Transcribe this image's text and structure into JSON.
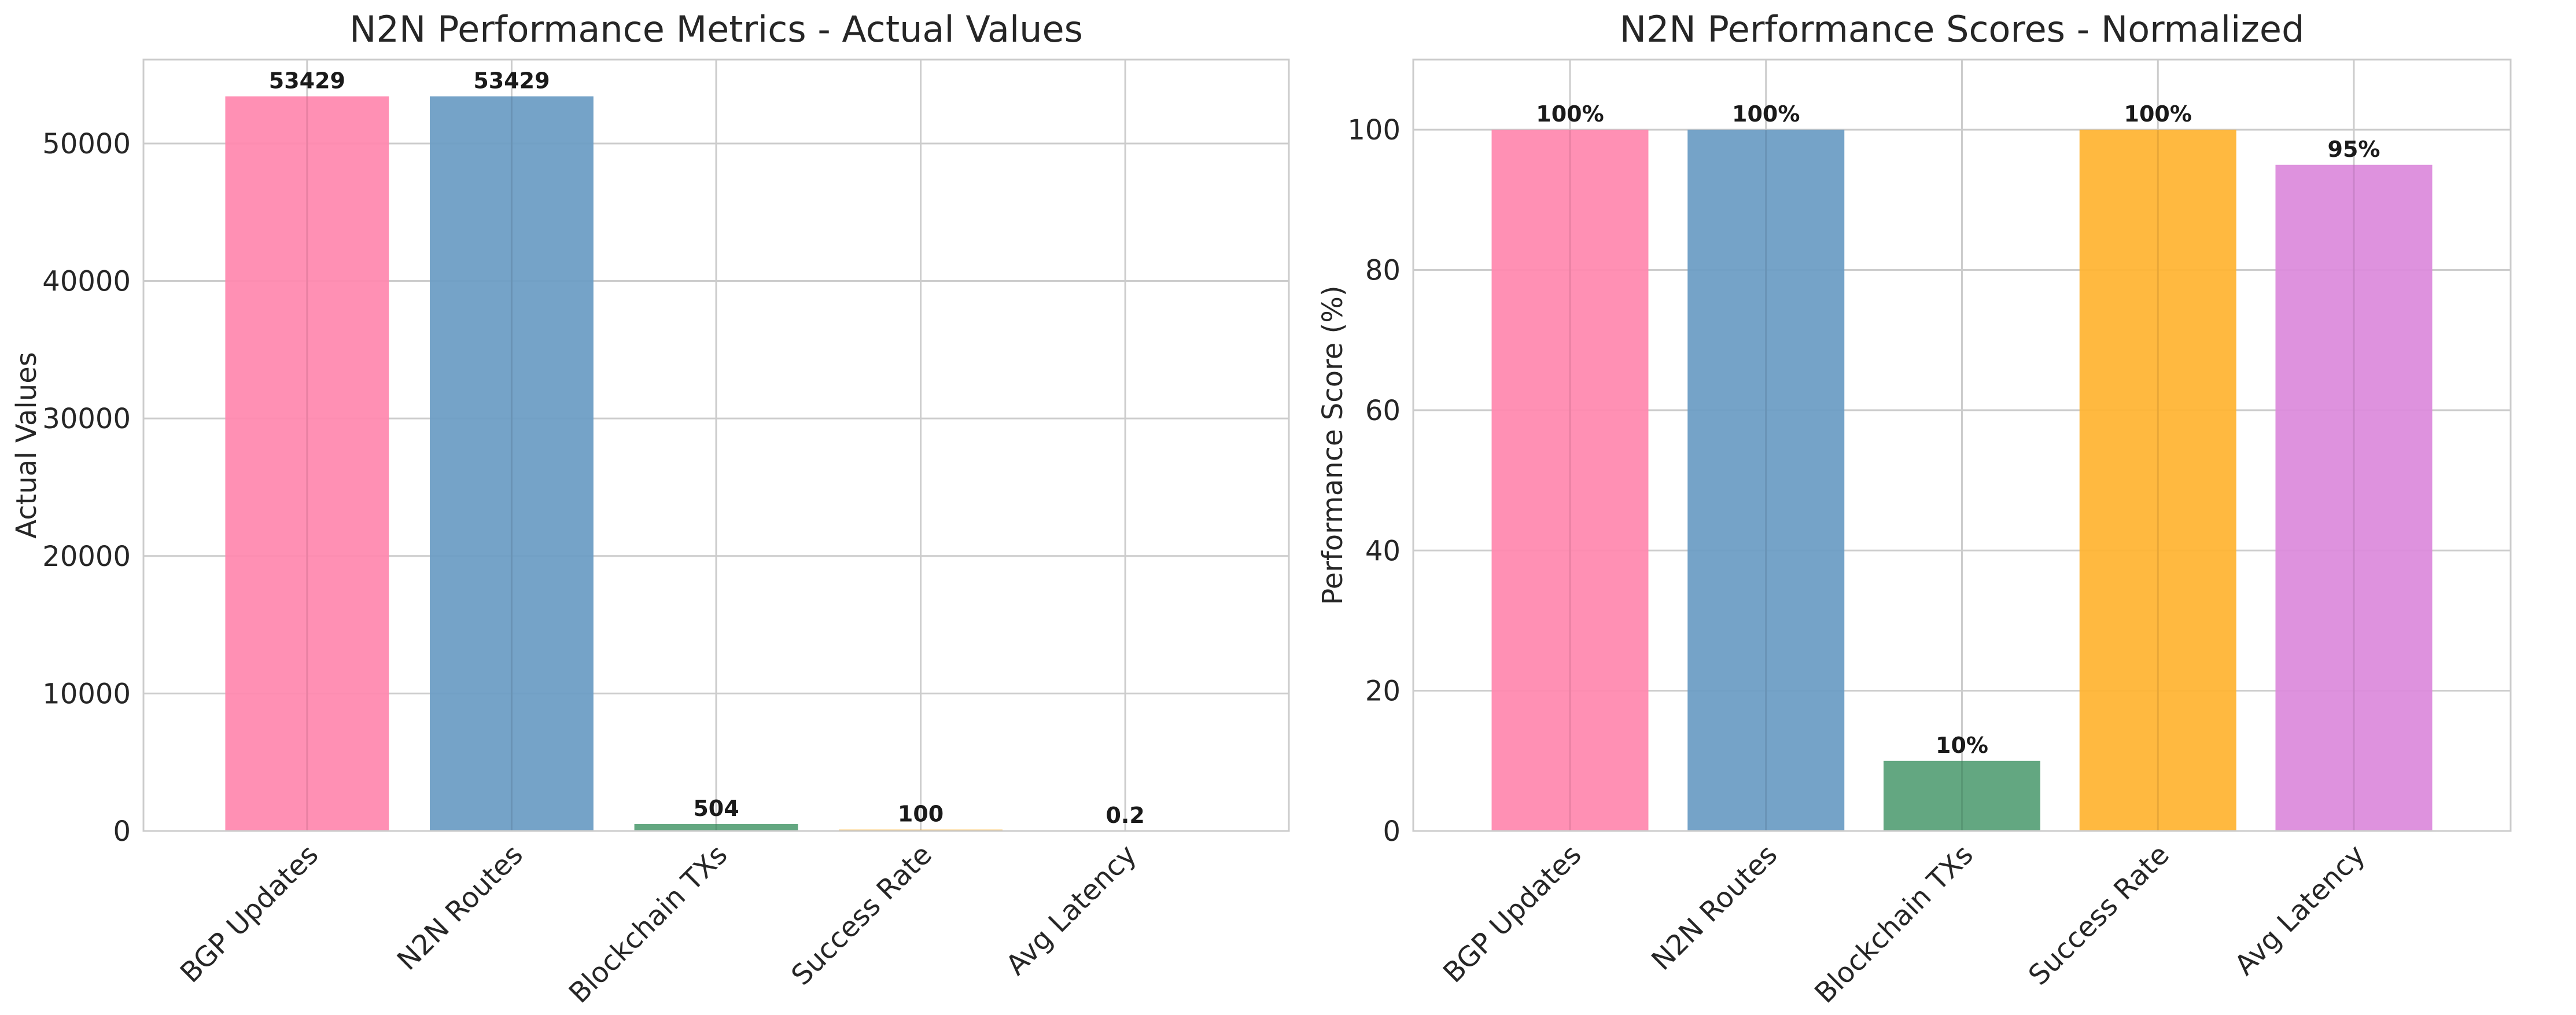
{
  "chart_data": [
    {
      "type": "bar",
      "title": "N2N Performance Metrics - Actual Values",
      "xlabel": "",
      "ylabel": "Actual Values",
      "categories": [
        "BGP Updates",
        "N2N Routes",
        "Blockchain TXs",
        "Success Rate",
        "Avg Latency"
      ],
      "values": [
        53429,
        53429,
        504,
        100,
        0.2
      ],
      "value_labels": [
        "53429",
        "53429",
        "504",
        "100",
        "0.2"
      ],
      "colors": [
        "#ff88ae",
        "#6a9cc4",
        "#57a077",
        "#ffb432",
        "#dc8adc"
      ],
      "ylim": [
        0,
        56100
      ],
      "yticks": [
        0,
        10000,
        20000,
        30000,
        40000,
        50000
      ],
      "ytick_labels": [
        "0",
        "10000",
        "20000",
        "30000",
        "40000",
        "50000"
      ],
      "grid": true,
      "legend": "none"
    },
    {
      "type": "bar",
      "title": "N2N Performance Scores - Normalized",
      "xlabel": "",
      "ylabel": "Performance Score (%)",
      "categories": [
        "BGP Updates",
        "N2N Routes",
        "Blockchain TXs",
        "Success Rate",
        "Avg Latency"
      ],
      "values": [
        100,
        100,
        10,
        100,
        95
      ],
      "value_labels": [
        "100%",
        "100%",
        "10%",
        "100%",
        "95%"
      ],
      "colors": [
        "#ff88ae",
        "#6a9cc4",
        "#57a077",
        "#ffb432",
        "#dc8adc"
      ],
      "ylim": [
        0,
        110
      ],
      "yticks": [
        0,
        20,
        40,
        60,
        80,
        100
      ],
      "ytick_labels": [
        "0",
        "20",
        "40",
        "60",
        "80",
        "100"
      ],
      "grid": true,
      "legend": "none"
    }
  ]
}
